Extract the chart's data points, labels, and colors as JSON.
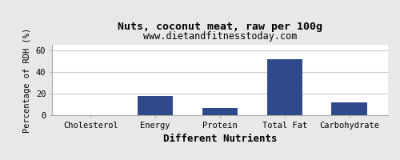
{
  "title": "Nuts, coconut meat, raw per 100g",
  "subtitle": "www.dietandfitnesstoday.com",
  "xlabel": "Different Nutrients",
  "ylabel": "Percentage of RDH (%)",
  "categories": [
    "Cholesterol",
    "Energy",
    "Protein",
    "Total Fat",
    "Carbohydrate"
  ],
  "values": [
    0,
    18,
    7,
    52,
    12
  ],
  "bar_color": "#2e4a8a",
  "ylim": [
    0,
    65
  ],
  "yticks": [
    0,
    20,
    40,
    60
  ],
  "background_color": "#e8e8e8",
  "plot_bg_color": "#ffffff",
  "title_fontsize": 9.5,
  "subtitle_fontsize": 8.5,
  "xlabel_fontsize": 9,
  "ylabel_fontsize": 7.5,
  "tick_fontsize": 7.5,
  "grid_color": "#cccccc",
  "bar_width": 0.55
}
